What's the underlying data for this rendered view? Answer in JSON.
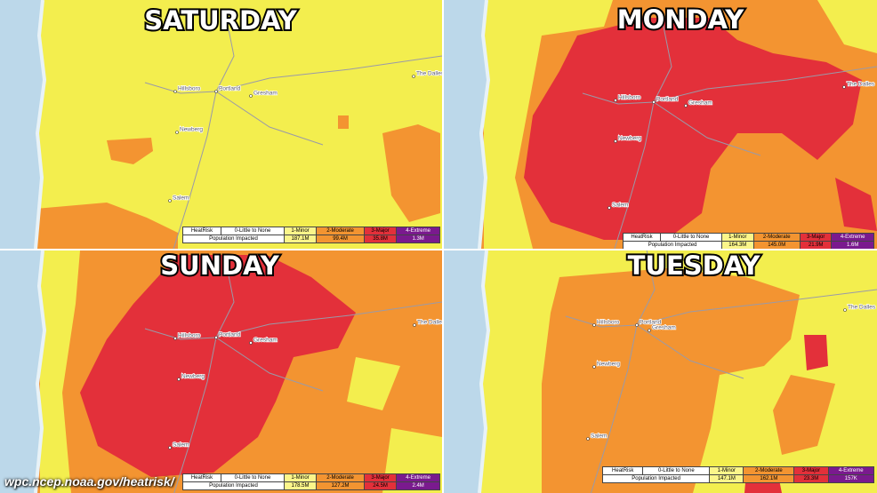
{
  "panels": [
    {
      "title": "SATURDAY",
      "cities": [
        "Hillsboro",
        "Portland",
        "Gresham",
        "Newberg",
        "Salem",
        "The Dalles"
      ],
      "legend": {
        "header": [
          "HeatRisk",
          "0-Little to None",
          "1-Minor",
          "2-Moderate",
          "3-Major",
          "4-Extreme"
        ],
        "row": [
          "Population Impacted",
          "187.1M",
          "99.4M",
          "35.8M",
          "1.3M"
        ]
      }
    },
    {
      "title": "MONDAY",
      "cities": [
        "Hillsboro",
        "Portland",
        "Gresham",
        "Newberg",
        "Salem",
        "The Dalles"
      ],
      "legend": {
        "header": [
          "HeatRisk",
          "0-Little to None",
          "1-Minor",
          "2-Moderate",
          "3-Major",
          "4-Extreme"
        ],
        "row": [
          "Population Impacted",
          "164.3M",
          "145.0M",
          "21.9M",
          "1.6M"
        ]
      }
    },
    {
      "title": "SUNDAY",
      "cities": [
        "Hillsboro",
        "Portland",
        "Gresham",
        "Newberg",
        "Salem",
        "The Dalles"
      ],
      "legend": {
        "header": [
          "HeatRisk",
          "0-Little to None",
          "1-Minor",
          "2-Moderate",
          "3-Major",
          "4-Extreme"
        ],
        "row": [
          "Population Impacted",
          "178.5M",
          "127.2M",
          "24.5M",
          "2.4M"
        ]
      }
    },
    {
      "title": "TUESDAY",
      "cities": [
        "Hillsboro",
        "Portland",
        "Gresham",
        "Newberg",
        "Salem",
        "The Dalles"
      ],
      "legend": {
        "header": [
          "HeatRisk",
          "0-Little to None",
          "1-Minor",
          "2-Moderate",
          "3-Major",
          "4-Extreme"
        ],
        "row": [
          "Population Impacted",
          "147.1M",
          "162.1M",
          "23.3M",
          "157K"
        ]
      }
    }
  ],
  "source": "wpc.ncep.noaa.gov/heatrisk/"
}
